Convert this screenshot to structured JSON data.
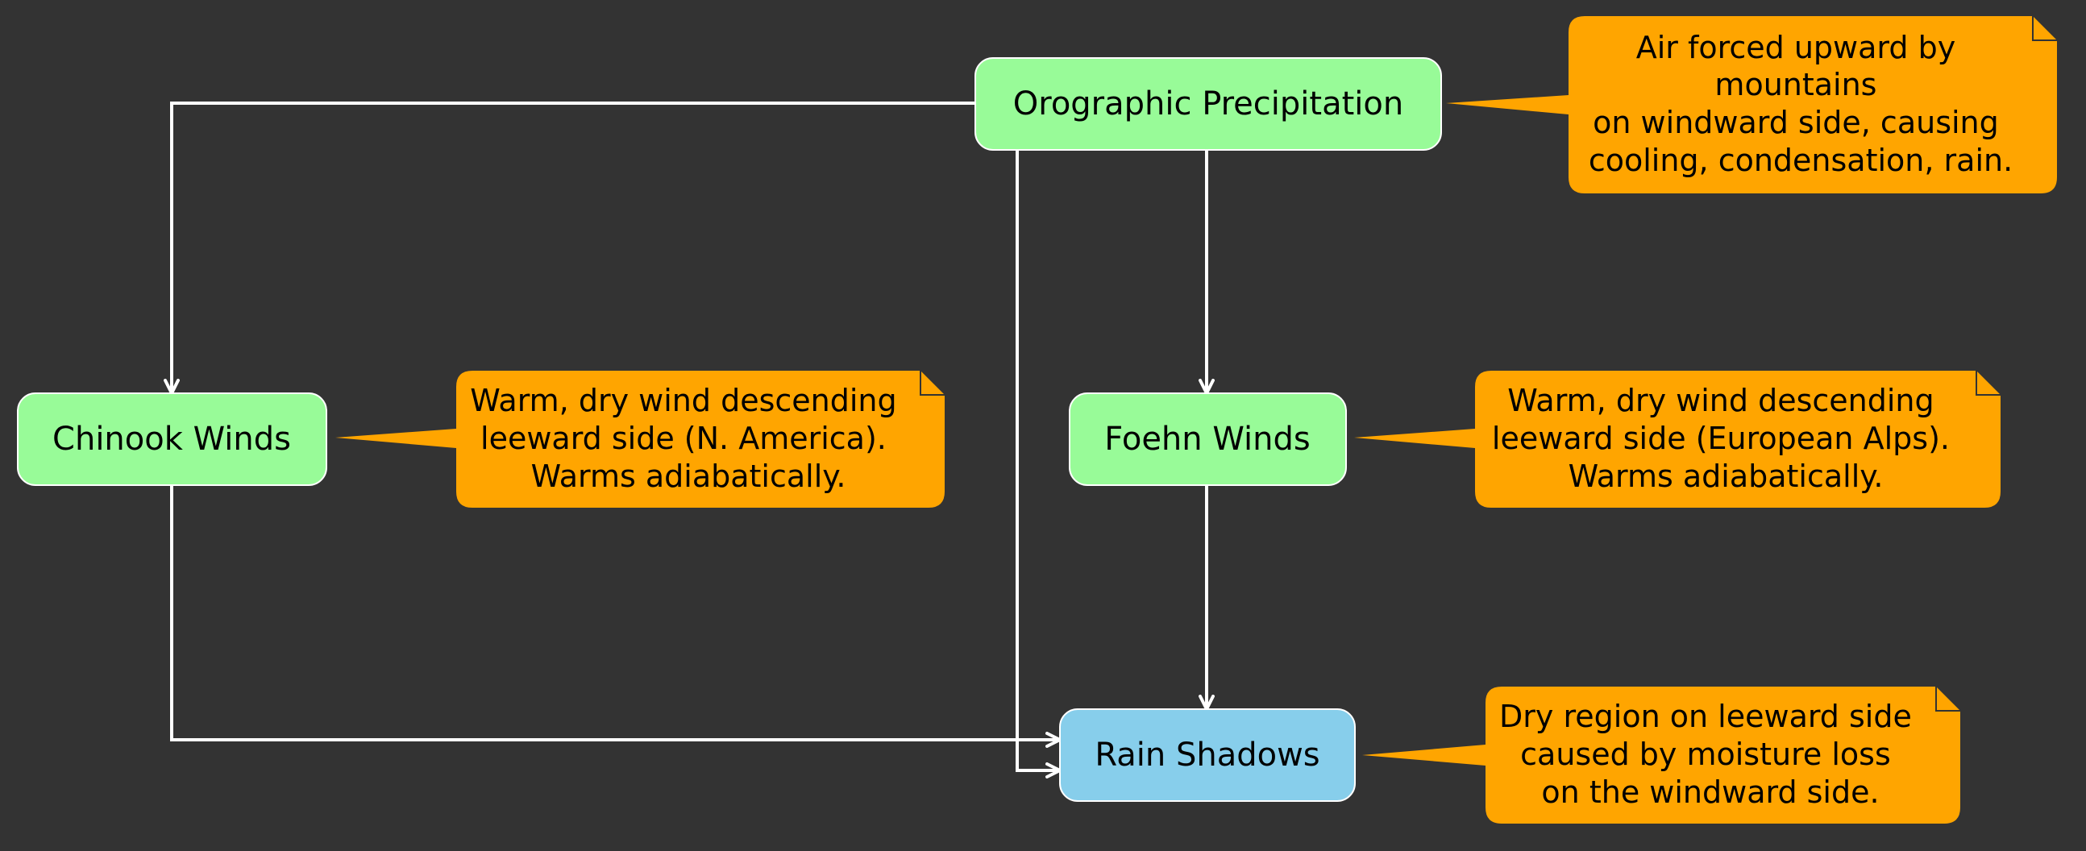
{
  "colors": {
    "background": "#333333",
    "node_green": "#98FB98",
    "node_blue": "#87CEEB",
    "note_orange": "#FFA500",
    "edge": "#FFFFFF"
  },
  "nodes": {
    "orographic": {
      "label": "Orographic Precipitation"
    },
    "chinook": {
      "label": "Chinook Winds"
    },
    "foehn": {
      "label": "Foehn Winds"
    },
    "rain_shadows": {
      "label": "Rain Shadows"
    }
  },
  "notes": {
    "orographic": {
      "lines": [
        "Air forced upward by",
        "mountains",
        "on windward side, causing",
        "cooling, condensation, rain."
      ]
    },
    "chinook": {
      "lines": [
        "Warm, dry wind descending",
        "leeward side (N. America).",
        "Warms adiabatically."
      ]
    },
    "foehn": {
      "lines": [
        "Warm, dry wind descending",
        "leeward side (European Alps).",
        "Warms adiabatically."
      ]
    },
    "rain_shadows": {
      "lines": [
        "Dry region on leeward side",
        "caused by moisture loss",
        "on the windward side."
      ]
    }
  }
}
